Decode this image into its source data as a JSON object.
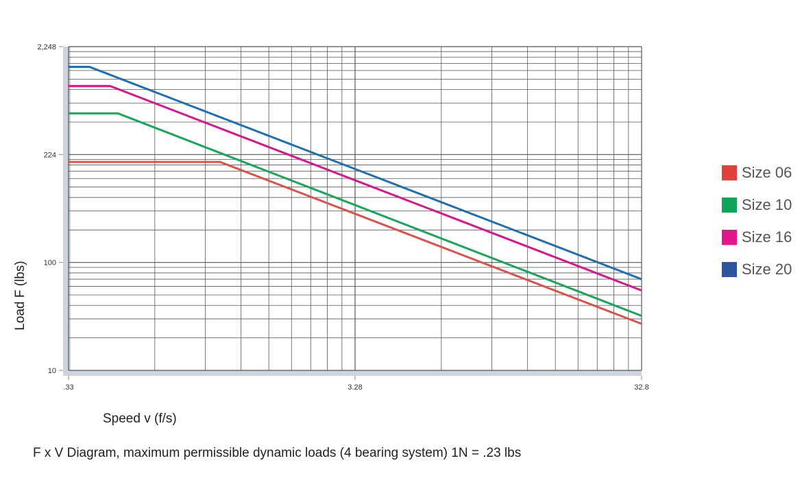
{
  "chart_data": {
    "type": "line",
    "title": "",
    "xlabel": "Speed v (f/s)",
    "ylabel": "Load F (lbs)",
    "caption": "F x V Diagram, maximum permissible dynamic loads (4 bearing system) 1N = .23 lbs",
    "x_scale": "log",
    "y_scale": "log",
    "x_ticks": [
      ".33",
      "3.28",
      "32.8"
    ],
    "x_tick_values": [
      0.33,
      3.28,
      32.8
    ],
    "y_ticks": [
      "10",
      "100",
      "224",
      "2,248"
    ],
    "y_tick_values": [
      10,
      100,
      224,
      2248
    ],
    "xlim": [
      0.33,
      32.8
    ],
    "ylim": [
      10,
      2248
    ],
    "grid": true,
    "legend_position": "right",
    "series": [
      {
        "name": "Size 06",
        "color": "#d9534a",
        "x": [
          0.33,
          1.11,
          32.8
        ],
        "y": [
          212,
          212,
          27
        ]
      },
      {
        "name": "Size 10",
        "color": "#1aa55a",
        "x": [
          0.33,
          0.49,
          32.8
        ],
        "y": [
          540,
          540,
          32
        ]
      },
      {
        "name": "Size 16",
        "color": "#d6168a",
        "x": [
          0.33,
          0.46,
          32.8
        ],
        "y": [
          970,
          970,
          55
        ]
      },
      {
        "name": "Size 20",
        "color": "#1f6fae",
        "x": [
          0.33,
          0.39,
          32.8
        ],
        "y": [
          1460,
          1460,
          70
        ]
      }
    ],
    "legend_swatch_colors": [
      "#e0403c",
      "#12a35a",
      "#e0168a",
      "#2f55a0"
    ]
  }
}
